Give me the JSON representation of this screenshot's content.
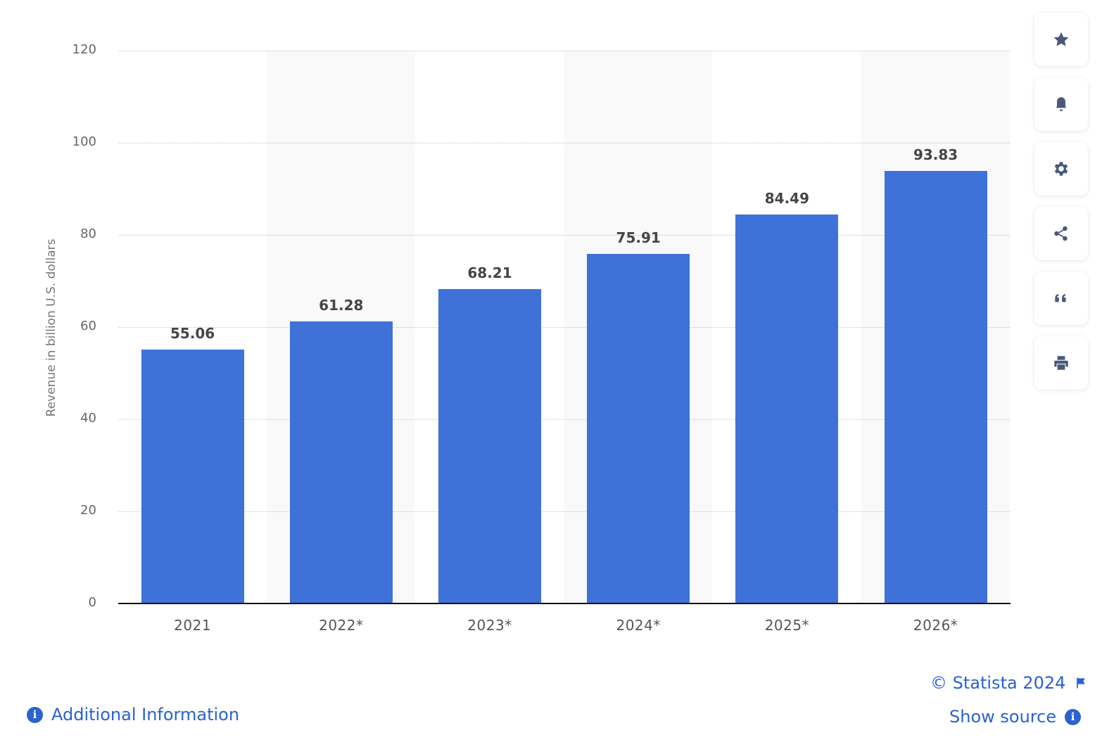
{
  "chart_data": {
    "type": "bar",
    "title": "",
    "xlabel": "",
    "ylabel": "Revenue in billion U.S. dollars",
    "ylim": [
      0,
      120
    ],
    "yticks": [
      "0",
      "20",
      "40",
      "60",
      "80",
      "100",
      "120"
    ],
    "grid": true,
    "categories": [
      "2021",
      "2022*",
      "2023*",
      "2024*",
      "2025*",
      "2026*"
    ],
    "values": [
      55.06,
      61.28,
      68.21,
      75.91,
      84.49,
      93.83
    ],
    "value_labels": [
      "55.06",
      "61.28",
      "68.21",
      "75.91",
      "84.49",
      "93.83"
    ],
    "bar_color": "#3e72d8",
    "legend": null
  },
  "toolbar": {
    "buttons": [
      {
        "name": "favorite",
        "icon": "star-icon"
      },
      {
        "name": "notification",
        "icon": "bell-icon"
      },
      {
        "name": "settings",
        "icon": "gear-icon"
      },
      {
        "name": "share",
        "icon": "share-icon"
      },
      {
        "name": "cite",
        "icon": "quote-icon"
      },
      {
        "name": "print",
        "icon": "print-icon"
      }
    ]
  },
  "footer": {
    "copyright": "© Statista 2024",
    "show_source": "Show source",
    "additional_info": "Additional Information",
    "info_glyph": "i",
    "link_color": "#2a62d0"
  }
}
